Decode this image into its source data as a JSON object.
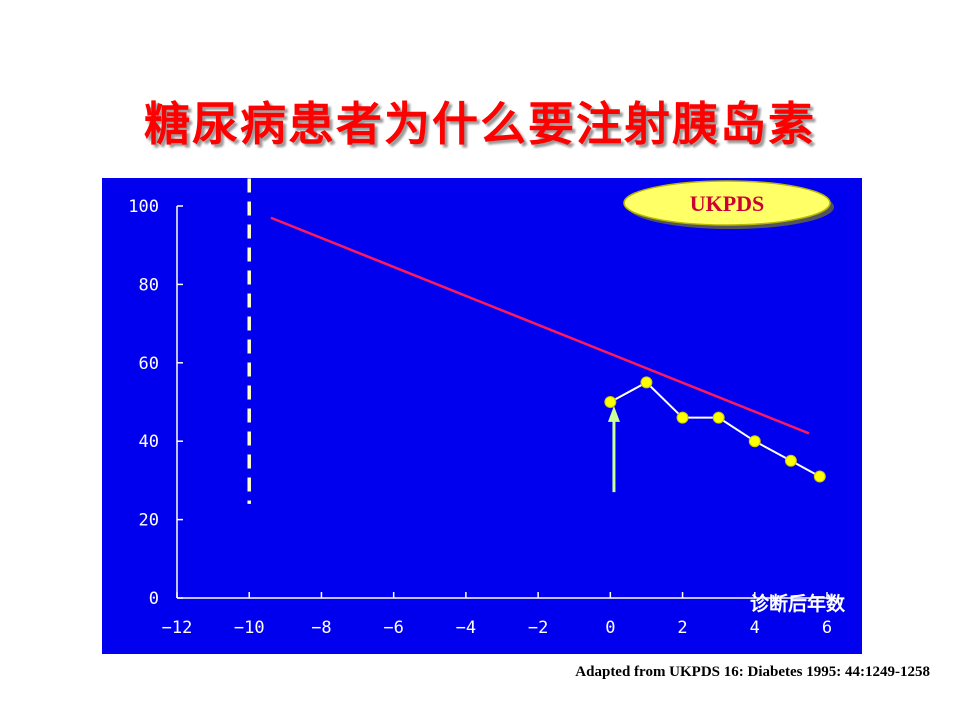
{
  "slide": {
    "title": "糖尿病患者为什么要注射胰岛素",
    "citation": "Adapted from UKPDS 16: Diabetes 1995: 44:1249-1258"
  },
  "colors": {
    "panel": "#0000ee",
    "trend_line": "#ff1a5e",
    "series_points": "#ffff00",
    "series_line": "#ffffff",
    "arrow": "#ccff99",
    "dashed_marker": "#ffffcc",
    "badge_fill": "#ffff66",
    "title": "#ff0000"
  },
  "chart_data": {
    "type": "line",
    "title": "",
    "xlabel": "诊断后年数",
    "ylabel": "",
    "xlim": [
      -12,
      6
    ],
    "ylim": [
      0,
      100
    ],
    "xticks": [
      -12,
      -10,
      -8,
      -6,
      -4,
      -2,
      0,
      2,
      4,
      6
    ],
    "yticks": [
      0,
      20,
      40,
      60,
      80,
      100
    ],
    "grid": false,
    "badge": "UKPDS",
    "series": [
      {
        "style": "line-with-markers",
        "x": [
          0,
          1,
          2,
          3,
          4,
          5,
          5.8
        ],
        "y": [
          50,
          55,
          46,
          46,
          40,
          35,
          31
        ]
      },
      {
        "style": "trend-line",
        "x": [
          -9.4,
          5.5
        ],
        "y": [
          97,
          42
        ]
      }
    ],
    "annotations": [
      {
        "type": "vertical-dashed-line",
        "x": -10,
        "y_range": [
          24,
          107
        ]
      },
      {
        "type": "arrow-up",
        "x": 0.1,
        "from_y": 27,
        "to_y": 49
      }
    ]
  }
}
